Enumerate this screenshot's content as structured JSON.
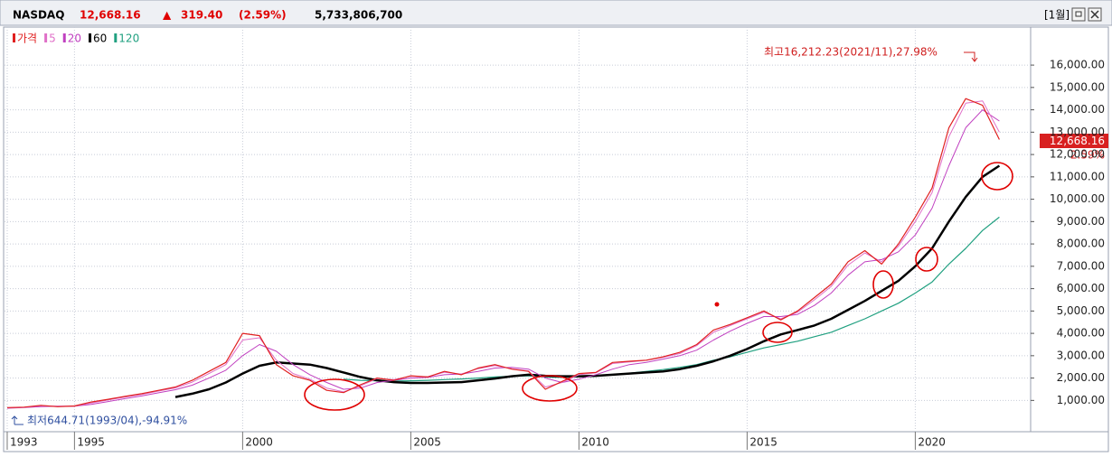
{
  "chart_data": {
    "type": "line",
    "title": "NASDAQ",
    "quote": {
      "last": "12,668.16",
      "direction": "▲",
      "change": "319.40",
      "change_pct": "(2.59%)",
      "volume": "5,733,806,700",
      "period": "[1월]",
      "badge_pct": "2.59%"
    },
    "annotations": {
      "high": "최고16,212.23(2021/11),27.98%",
      "low": "최저644.71(1993/04),-94.91%"
    },
    "x": [
      1993,
      1993.5,
      1994,
      1994.5,
      1995,
      1995.5,
      1996,
      1996.5,
      1997,
      1997.5,
      1998,
      1998.5,
      1999,
      1999.5,
      2000,
      2000.5,
      2001,
      2001.5,
      2002,
      2002.5,
      2003,
      2003.5,
      2004,
      2004.5,
      2005,
      2005.5,
      2006,
      2006.5,
      2007,
      2007.5,
      2008,
      2008.5,
      2009,
      2009.5,
      2010,
      2010.5,
      2011,
      2011.5,
      2012,
      2012.5,
      2013,
      2013.5,
      2014,
      2014.5,
      2015,
      2015.5,
      2016,
      2016.5,
      2017,
      2017.5,
      2018,
      2018.5,
      2019,
      2019.5,
      2020,
      2020.5,
      2021,
      2021.5,
      2022,
      2022.5
    ],
    "series": [
      {
        "name": "가격",
        "color": "#e02020",
        "width": 1.2,
        "values": [
          680,
          700,
          780,
          720,
          750,
          930,
          1050,
          1180,
          1300,
          1450,
          1600,
          1900,
          2300,
          2700,
          4000,
          3900,
          2600,
          2100,
          1900,
          1450,
          1350,
          1700,
          2000,
          1900,
          2100,
          2050,
          2300,
          2150,
          2450,
          2600,
          2400,
          2300,
          1500,
          1850,
          2200,
          2250,
          2700,
          2750,
          2800,
          2950,
          3150,
          3500,
          4150,
          4400,
          4700,
          5000,
          4600,
          5000,
          5600,
          6200,
          7200,
          7700,
          7100,
          8000,
          9200,
          10500,
          13200,
          14500,
          14200,
          12668.16
        ]
      },
      {
        "name": "5",
        "color": "#e070c8",
        "width": 1,
        "values": [
          670,
          690,
          760,
          740,
          740,
          880,
          1020,
          1150,
          1270,
          1420,
          1560,
          1820,
          2200,
          2600,
          3700,
          3800,
          2800,
          2200,
          1950,
          1550,
          1380,
          1650,
          1980,
          1930,
          2080,
          2060,
          2260,
          2180,
          2420,
          2560,
          2420,
          2320,
          1600,
          1800,
          2150,
          2230,
          2650,
          2720,
          2790,
          2930,
          3100,
          3450,
          4050,
          4350,
          4650,
          4950,
          4650,
          4950,
          5500,
          6100,
          7050,
          7600,
          7200,
          7900,
          9000,
          10300,
          12800,
          14300,
          14400,
          13000
        ]
      },
      {
        "name": "20",
        "color": "#c040c0",
        "width": 1,
        "values": [
          650,
          680,
          720,
          740,
          745,
          820,
          950,
          1080,
          1200,
          1340,
          1480,
          1680,
          2000,
          2350,
          3000,
          3500,
          3200,
          2600,
          2150,
          1800,
          1500,
          1550,
          1800,
          1900,
          2000,
          2030,
          2150,
          2180,
          2300,
          2450,
          2480,
          2400,
          2000,
          1800,
          1950,
          2150,
          2400,
          2600,
          2700,
          2850,
          3000,
          3250,
          3700,
          4100,
          4450,
          4750,
          4750,
          4850,
          5250,
          5800,
          6600,
          7200,
          7300,
          7650,
          8400,
          9600,
          11500,
          13200,
          14000,
          13500
        ]
      },
      {
        "name": "60",
        "color": "#000000",
        "width": 2.5,
        "values": [
          null,
          null,
          null,
          null,
          null,
          null,
          null,
          null,
          null,
          null,
          1150,
          1300,
          1500,
          1800,
          2200,
          2550,
          2700,
          2650,
          2600,
          2450,
          2250,
          2050,
          1900,
          1820,
          1780,
          1780,
          1800,
          1820,
          1900,
          1980,
          2080,
          2150,
          2100,
          2080,
          2080,
          2100,
          2150,
          2200,
          2250,
          2300,
          2400,
          2550,
          2750,
          3000,
          3300,
          3650,
          3950,
          4150,
          4350,
          4650,
          5050,
          5450,
          5900,
          6350,
          7000,
          7800,
          9000,
          10100,
          11000,
          11500
        ]
      },
      {
        "name": "120",
        "color": "#20a080",
        "width": 1.2,
        "values": [
          null,
          null,
          null,
          null,
          null,
          null,
          null,
          null,
          null,
          null,
          null,
          null,
          null,
          null,
          null,
          null,
          null,
          null,
          null,
          null,
          1950,
          1900,
          1880,
          1870,
          1880,
          1900,
          1930,
          1960,
          2000,
          2050,
          2080,
          2100,
          2050,
          2030,
          2050,
          2080,
          2150,
          2220,
          2300,
          2380,
          2480,
          2600,
          2800,
          2950,
          3150,
          3350,
          3500,
          3650,
          3850,
          4050,
          4350,
          4650,
          5000,
          5350,
          5800,
          6300,
          7100,
          7800,
          8600,
          9200
        ]
      }
    ],
    "xlim": [
      1992.92,
      2023.43
    ],
    "xticks": [
      1993,
      1995,
      2000,
      2005,
      2010,
      2015,
      2020
    ],
    "ylim": [
      -400,
      17700
    ],
    "yticks": [
      {
        "value": 1000,
        "label": "1,000.00"
      },
      {
        "value": 2000,
        "label": "2,000.00"
      },
      {
        "value": 3000,
        "label": "3,000.00"
      },
      {
        "value": 4000,
        "label": "4,000.00"
      },
      {
        "value": 5000,
        "label": "5,000.00"
      },
      {
        "value": 6000,
        "label": "6,000.00"
      },
      {
        "value": 7000,
        "label": "7,000.00"
      },
      {
        "value": 8000,
        "label": "8,000.00"
      },
      {
        "value": 9000,
        "label": "9,000.00"
      },
      {
        "value": 10000,
        "label": "10,000.00"
      },
      {
        "value": 11000,
        "label": "11,000.00"
      },
      {
        "value": 12000,
        "label": "12,000.00"
      },
      {
        "value": 13000,
        "label": "13,000.00"
      },
      {
        "value": 14000,
        "label": "14,000.00"
      },
      {
        "value": 15000,
        "label": "15,000.00"
      },
      {
        "value": 16000,
        "label": "16,000.00"
      }
    ],
    "grid": true
  }
}
